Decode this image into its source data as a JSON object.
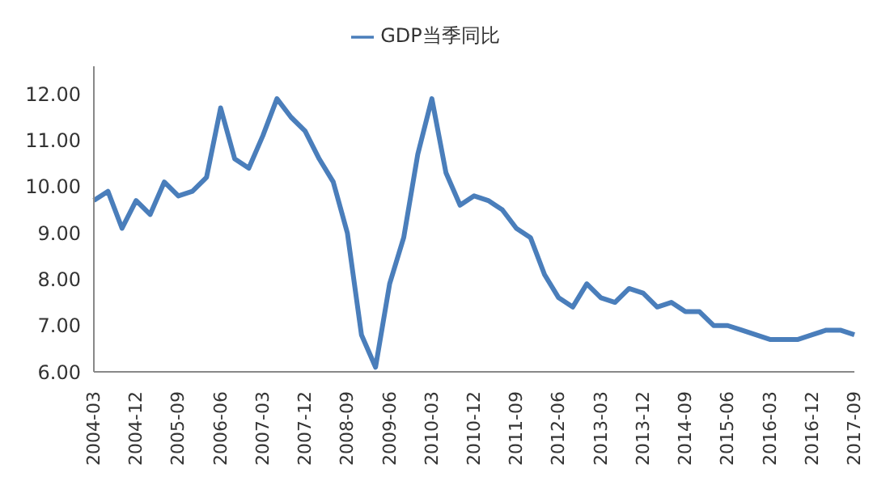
{
  "chart_data": {
    "type": "line",
    "categories": [
      "2004-03",
      null,
      null,
      "2004-12",
      null,
      null,
      "2005-09",
      null,
      null,
      "2006-06",
      null,
      null,
      "2007-03",
      null,
      null,
      "2007-12",
      null,
      null,
      "2008-09",
      null,
      null,
      "2009-06",
      null,
      null,
      "2010-03",
      null,
      null,
      "2010-12",
      null,
      null,
      "2011-09",
      null,
      null,
      "2012-06",
      null,
      null,
      "2013-03",
      null,
      null,
      "2013-12",
      null,
      null,
      "2014-09",
      null,
      null,
      "2015-06",
      null,
      null,
      "2016-03",
      null,
      null,
      "2016-12",
      null,
      null,
      "2017-09"
    ],
    "series": [
      {
        "name": "GDP当季同比",
        "color": "#4a7ebb",
        "values": [
          9.7,
          9.9,
          9.1,
          9.7,
          9.4,
          10.1,
          9.8,
          9.9,
          10.2,
          11.7,
          10.6,
          10.4,
          11.1,
          11.9,
          11.5,
          11.2,
          10.6,
          10.1,
          9.0,
          6.8,
          6.1,
          7.9,
          8.9,
          10.7,
          11.9,
          10.3,
          9.6,
          9.8,
          9.7,
          9.5,
          9.1,
          8.9,
          8.1,
          7.6,
          7.4,
          7.9,
          7.6,
          7.5,
          7.8,
          7.7,
          7.4,
          7.5,
          7.3,
          7.3,
          7.0,
          7.0,
          6.9,
          6.8,
          6.7,
          6.7,
          6.7,
          6.8,
          6.9,
          6.9,
          6.8
        ]
      }
    ],
    "ylim": [
      6,
      12.6
    ],
    "yticks": [
      {
        "value": 6,
        "label": "6.00"
      },
      {
        "value": 7,
        "label": "7.00"
      },
      {
        "value": 8,
        "label": "8.00"
      },
      {
        "value": 9,
        "label": "9.00"
      },
      {
        "value": 10,
        "label": "10.00"
      },
      {
        "value": 11,
        "label": "11.00"
      },
      {
        "value": 12,
        "label": "12.00"
      }
    ],
    "legend": "top",
    "grid": false,
    "marker": "none",
    "line_style": "solid"
  }
}
